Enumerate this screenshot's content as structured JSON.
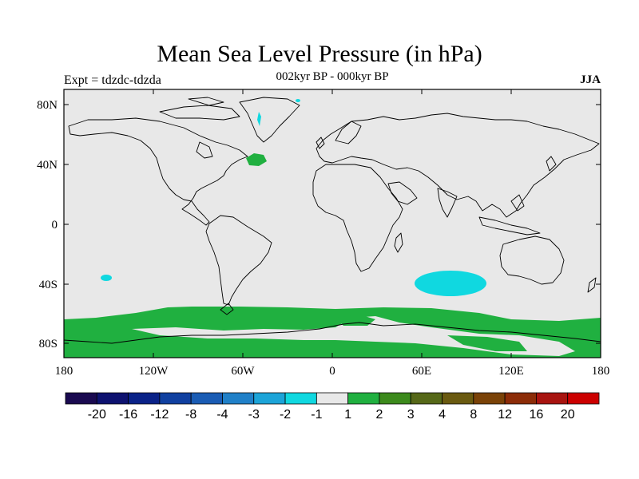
{
  "title": "Mean Sea Level Pressure (in hPa)",
  "subtitle": "002kyr BP - 000kyr BP",
  "experiment": "Expt = tdzdc-tdzda",
  "season": "JJA",
  "lat_ticks": [
    "80N",
    "40N",
    "0",
    "40S",
    "80S"
  ],
  "lon_ticks": [
    "180",
    "120W",
    "60W",
    "0",
    "60E",
    "120E",
    "180"
  ],
  "colorbar": {
    "colors": [
      "#1a0a50",
      "#0e1270",
      "#0a2288",
      "#1040a0",
      "#1a5cb4",
      "#2080c8",
      "#1ca4d8",
      "#10d8e0",
      "#e8e8e8",
      "#20b040",
      "#3c8a1c",
      "#566818",
      "#6a5a10",
      "#7a4208",
      "#8c2c08",
      "#a81410",
      "#cc0000"
    ],
    "labels": [
      "-20",
      "-16",
      "-12",
      "-8",
      "-4",
      "-3",
      "-2",
      "-1",
      "1",
      "2",
      "3",
      "4",
      "8",
      "12",
      "16",
      "20"
    ]
  },
  "chart_data": {
    "type": "heatmap",
    "variable": "Mean Sea Level Pressure anomaly",
    "units": "hPa",
    "xlim": [
      -180,
      180
    ],
    "ylim": [
      -90,
      90
    ],
    "regions": [
      {
        "name": "Southern Ocean band",
        "lon": [
          -180,
          180
        ],
        "lat": [
          -80,
          -55
        ],
        "level": "1 to 2"
      },
      {
        "name": "South Indian Ocean low",
        "lon": [
          55,
          100
        ],
        "lat": [
          -48,
          -37
        ],
        "level": "-2 to -1"
      },
      {
        "name": "North Atlantic patch",
        "lon": [
          -58,
          -47
        ],
        "lat": [
          40,
          47
        ],
        "level": "1 to 2"
      },
      {
        "name": "South Pacific spot",
        "lon": [
          -157,
          -150
        ],
        "lat": [
          -37,
          -34
        ],
        "level": "-2 to -1"
      },
      {
        "name": "Greenland sliver",
        "lon": [
          -50,
          -48
        ],
        "lat": [
          68,
          75
        ],
        "level": "-2 to -1"
      }
    ]
  }
}
